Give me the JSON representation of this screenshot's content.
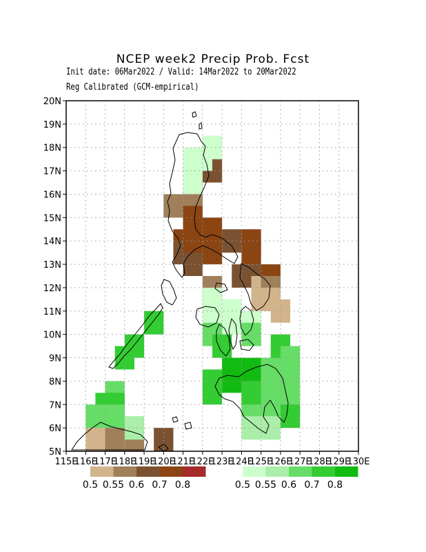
{
  "header": {
    "title": "NCEP week2 Precip Prob. Fcst",
    "subtitle_dates": "Init date: 06Mar2022 / Valid: 14Mar2022 to 20Mar2022",
    "subtitle_method": "Reg Calibrated (GCM-empirical)"
  },
  "axes": {
    "lat_ticks": [
      "5N",
      "6N",
      "7N",
      "8N",
      "9N",
      "10N",
      "11N",
      "12N",
      "13N",
      "14N",
      "15N",
      "16N",
      "17N",
      "18N",
      "19N",
      "20N"
    ],
    "lon_ticks": [
      "115E",
      "116E",
      "117E",
      "118E",
      "119E",
      "120E",
      "121E",
      "122E",
      "123E",
      "124E",
      "125E",
      "126E",
      "127E",
      "128E",
      "129E",
      "130E"
    ],
    "lat_range": [
      5,
      20
    ],
    "lon_range": [
      115,
      130
    ],
    "grid": true
  },
  "colorbars": {
    "dry": {
      "colors": [
        "#d2b48c",
        "#a0805a",
        "#7a5232",
        "#8b4513",
        "#a52a2a"
      ],
      "labels": [
        "0.5",
        "0.55",
        "0.6",
        "0.7",
        "0.8"
      ]
    },
    "wet": {
      "colors": [
        "#ccffcc",
        "#aaeeaa",
        "#66dd66",
        "#33cc33",
        "#11bb11"
      ],
      "labels": [
        "0.5",
        "0.55",
        "0.6",
        "0.7",
        "0.8"
      ]
    }
  },
  "chart_data": {
    "type": "heatmap",
    "title": "NCEP week2 Precip Prob. Fcst",
    "x_unit": "deg E",
    "y_unit": "deg N",
    "cell_size_deg": 1,
    "cells_note": "each cell: lon (west edge), lat (south edge), category (dry = below-normal, wet = above-normal), level index 0..4 of the colorbar",
    "cells": [
      [
        122,
        17.5,
        "dry",
        0
      ],
      [
        121,
        16.5,
        "dry",
        1
      ],
      [
        122,
        16.5,
        "dry",
        2
      ],
      [
        121,
        15.5,
        "dry",
        1
      ],
      [
        120,
        15,
        "dry",
        1
      ],
      [
        121,
        15,
        "dry",
        1
      ],
      [
        121,
        14.5,
        "dry",
        3
      ],
      [
        121,
        14,
        "dry",
        3
      ],
      [
        122,
        14,
        "dry",
        3
      ],
      [
        120.5,
        13.5,
        "dry",
        3
      ],
      [
        121,
        13.5,
        "dry",
        3
      ],
      [
        122,
        13.5,
        "dry",
        3
      ],
      [
        123,
        13.5,
        "dry",
        2
      ],
      [
        120.5,
        13,
        "dry",
        2
      ],
      [
        121,
        13,
        "dry",
        3
      ],
      [
        122,
        13,
        "dry",
        3
      ],
      [
        121,
        12.5,
        "dry",
        2
      ],
      [
        124,
        13.5,
        "dry",
        3
      ],
      [
        124,
        13,
        "dry",
        3
      ],
      [
        123.5,
        12,
        "dry",
        2
      ],
      [
        124.5,
        12,
        "dry",
        2
      ],
      [
        125,
        12,
        "dry",
        3
      ],
      [
        124.5,
        11.5,
        "dry",
        0
      ],
      [
        125,
        11.5,
        "dry",
        1
      ],
      [
        122,
        11.5,
        "dry",
        1
      ],
      [
        124.5,
        11,
        "dry",
        0
      ],
      [
        125,
        11,
        "dry",
        0
      ],
      [
        125.5,
        10.5,
        "dry",
        0
      ],
      [
        119.5,
        5,
        "dry",
        2
      ],
      [
        116,
        5,
        "dry",
        0
      ],
      [
        117,
        5,
        "dry",
        1
      ],
      [
        118,
        5,
        "dry",
        1
      ],
      [
        121,
        17,
        "wet",
        0
      ],
      [
        121,
        16,
        "wet",
        0
      ],
      [
        122,
        17.5,
        "wet",
        0
      ],
      [
        121.5,
        17,
        "wet",
        0
      ],
      [
        122,
        11,
        "wet",
        0
      ],
      [
        122,
        10.5,
        "wet",
        0
      ],
      [
        123,
        10.5,
        "wet",
        0
      ],
      [
        123,
        10,
        "wet",
        0
      ],
      [
        124,
        10,
        "wet",
        0
      ],
      [
        124,
        9.5,
        "wet",
        2
      ],
      [
        122,
        9.5,
        "wet",
        2
      ],
      [
        122.5,
        9,
        "wet",
        3
      ],
      [
        119,
        10,
        "wet",
        3
      ],
      [
        118,
        9,
        "wet",
        3
      ],
      [
        117.5,
        8.5,
        "wet",
        3
      ],
      [
        117,
        7,
        "wet",
        2
      ],
      [
        116.5,
        6.5,
        "wet",
        3
      ],
      [
        117,
        6.5,
        "wet",
        3
      ],
      [
        116,
        6,
        "wet",
        2
      ],
      [
        117,
        6,
        "wet",
        2
      ],
      [
        118,
        5.5,
        "wet",
        1
      ],
      [
        122,
        7.5,
        "wet",
        3
      ],
      [
        122,
        7,
        "wet",
        3
      ],
      [
        123,
        8,
        "wet",
        4
      ],
      [
        124,
        8,
        "wet",
        4
      ],
      [
        125,
        8,
        "wet",
        2
      ],
      [
        125.5,
        8,
        "wet",
        2
      ],
      [
        123,
        7.5,
        "wet",
        4
      ],
      [
        124,
        7.5,
        "wet",
        4
      ],
      [
        125,
        7.5,
        "wet",
        2
      ],
      [
        126,
        7.5,
        "wet",
        2
      ],
      [
        124,
        7,
        "wet",
        3
      ],
      [
        125,
        7,
        "wet",
        2
      ],
      [
        126,
        7,
        "wet",
        2
      ],
      [
        124,
        6.5,
        "wet",
        3
      ],
      [
        125,
        6.5,
        "wet",
        2
      ],
      [
        126,
        6.5,
        "wet",
        2
      ],
      [
        124,
        6,
        "wet",
        2
      ],
      [
        125,
        6,
        "wet",
        2
      ],
      [
        126,
        6,
        "wet",
        3
      ],
      [
        124,
        5.5,
        "wet",
        1
      ],
      [
        125,
        5.5,
        "wet",
        1
      ],
      [
        125.5,
        8.5,
        "wet",
        2
      ],
      [
        125.5,
        9,
        "wet",
        3
      ],
      [
        126,
        8.5,
        "wet",
        2
      ]
    ]
  }
}
